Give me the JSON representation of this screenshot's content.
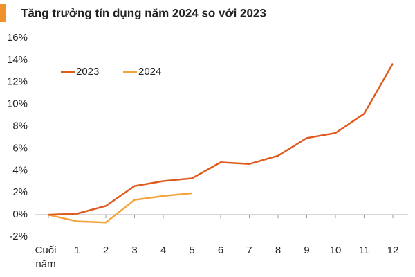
{
  "chart_data": {
    "type": "line",
    "title": "Tăng trưởng tín dụng năm 2024 so với 2023",
    "categories": [
      "Cuối năm",
      "1",
      "2",
      "3",
      "4",
      "5",
      "6",
      "7",
      "8",
      "9",
      "10",
      "11",
      "12"
    ],
    "series": [
      {
        "name": "2023",
        "color": "#e05a1e",
        "values": [
          0,
          0.1,
          0.8,
          2.6,
          3.05,
          3.3,
          4.75,
          4.6,
          5.35,
          6.95,
          7.4,
          9.15,
          13.7
        ]
      },
      {
        "name": "2024",
        "color": "#f5a33a",
        "values": [
          0,
          -0.6,
          -0.7,
          1.35,
          1.7,
          1.95,
          null,
          null,
          null,
          null,
          null,
          null,
          null
        ]
      }
    ],
    "ylim": [
      -2,
      16
    ],
    "yticks": [
      {
        "value": -2,
        "label": "-2%"
      },
      {
        "value": 0,
        "label": "0%"
      },
      {
        "value": 2,
        "label": "2%"
      },
      {
        "value": 4,
        "label": "4%"
      },
      {
        "value": 6,
        "label": "6%"
      },
      {
        "value": 8,
        "label": "8%"
      },
      {
        "value": 10,
        "label": "10%"
      },
      {
        "value": 12,
        "label": "12%"
      },
      {
        "value": 14,
        "label": "14%"
      },
      {
        "value": 16,
        "label": "16%"
      }
    ],
    "legend": "top-left"
  }
}
